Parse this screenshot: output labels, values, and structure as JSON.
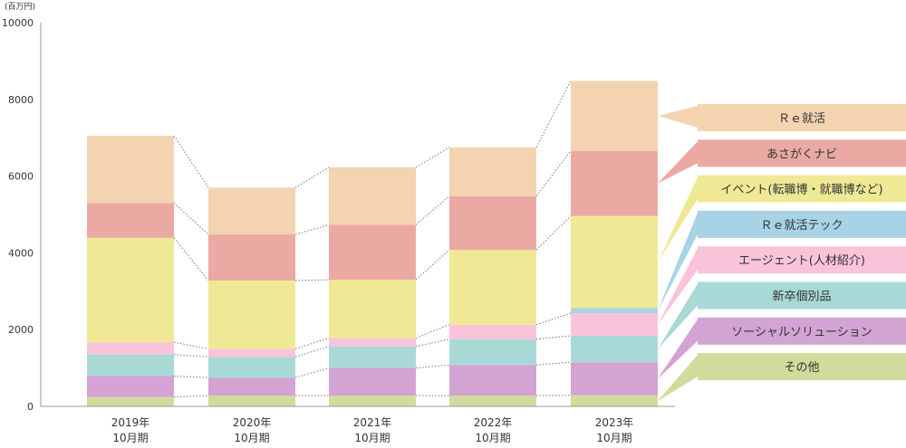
{
  "chart_data": {
    "type": "bar",
    "stacked": true,
    "unit_label": "(百万円)",
    "categories": [
      [
        "2019年",
        "10月期"
      ],
      [
        "2020年",
        "10月期"
      ],
      [
        "2021年",
        "10月期"
      ],
      [
        "2022年",
        "10月期"
      ],
      [
        "2023年",
        "10月期"
      ]
    ],
    "ylim": [
      0,
      10000
    ],
    "yticks": [
      0,
      2000,
      4000,
      6000,
      8000,
      10000
    ],
    "grid": false,
    "legend_position": "right",
    "series": [
      {
        "name": "その他",
        "color": "#d0dc9c",
        "values": [
          240,
          280,
          280,
          280,
          290
        ]
      },
      {
        "name": "ソーシャルソリューション",
        "color": "#d3a3d3",
        "values": [
          550,
          470,
          720,
          800,
          860
        ]
      },
      {
        "name": "新卒個別品",
        "color": "#a9d9d7",
        "values": [
          560,
          540,
          560,
          670,
          690
        ]
      },
      {
        "name": "エージェント(人材紹介)",
        "color": "#f9c4d9",
        "values": [
          320,
          210,
          220,
          380,
          590
        ]
      },
      {
        "name": "Ｒｅ就活テック",
        "color": "#a8d2e6",
        "values": [
          0,
          0,
          0,
          0,
          130
        ]
      },
      {
        "name": "イベント(転職博・就職博など)",
        "color": "#efe996",
        "values": [
          2720,
          1780,
          1520,
          1950,
          2400
        ]
      },
      {
        "name": "あさがくナビ",
        "color": "#eaaaa3",
        "values": [
          910,
          1200,
          1430,
          1400,
          1700
        ]
      },
      {
        "name": "Ｒｅ就活",
        "color": "#f4d3b1",
        "values": [
          1750,
          1220,
          1500,
          1270,
          1820
        ]
      }
    ]
  }
}
